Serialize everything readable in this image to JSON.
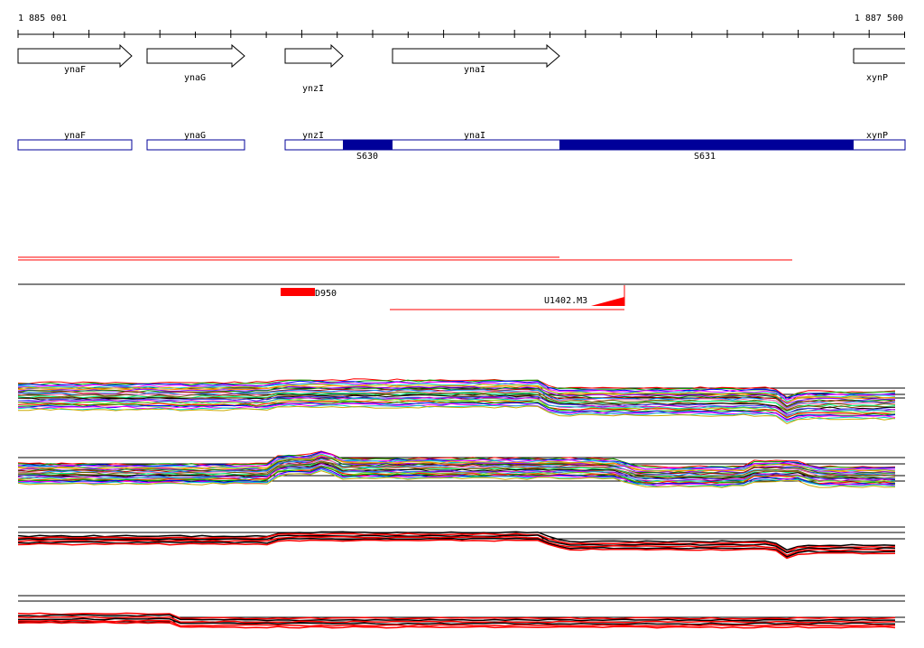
{
  "ruler": {
    "start_label": "1 885 001",
    "end_label": "1 887 500",
    "start": 1885001,
    "end": 1887500
  },
  "genes": [
    {
      "name": "ynaF",
      "start": 1885001,
      "end": 1885325,
      "strand": "+"
    },
    {
      "name": "ynaG",
      "start": 1885366,
      "end": 1885642,
      "strand": "+"
    },
    {
      "name": "ynzI",
      "start": 1885755,
      "end": 1885920,
      "strand": "+"
    },
    {
      "name": "ynaI",
      "start": 1886056,
      "end": 1886527,
      "strand": "+"
    },
    {
      "name": "xynP",
      "start": 1887357,
      "end": 1887500,
      "strand": "+"
    }
  ],
  "segments": [
    {
      "name": "S630",
      "start": 1885918,
      "end": 1886060
    },
    {
      "name": "S631",
      "start": 1886527,
      "end": 1887357
    }
  ],
  "features": {
    "d950_label": "D950",
    "u1402_label": "U1402.M3"
  },
  "colors": {
    "segment_fill": "#000099",
    "gene_outline": "#000099",
    "feature_red": "#ff0000",
    "arrow_stroke": "#000000"
  }
}
